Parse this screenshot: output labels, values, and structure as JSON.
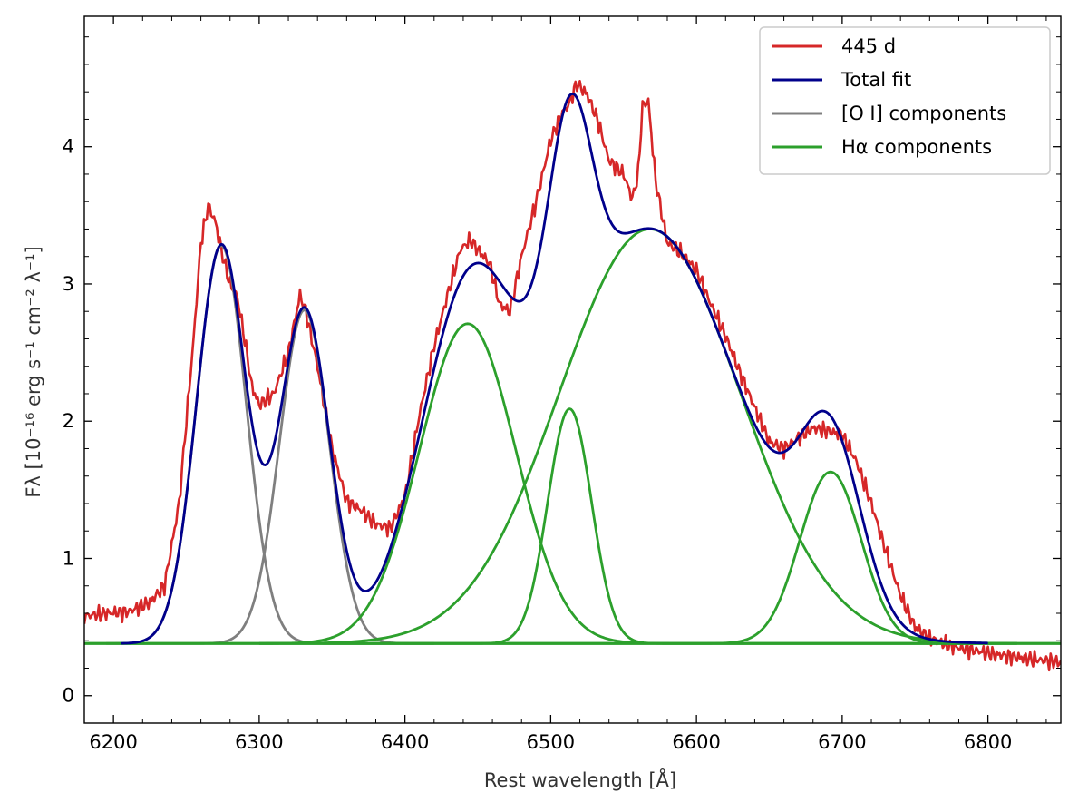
{
  "chart_data": {
    "type": "line",
    "title": "",
    "xlabel": "Rest wavelength [Å]",
    "ylabel": "Fλ [10⁻¹⁶ erg s⁻¹ cm⁻² λ⁻¹]",
    "xlim": [
      6180,
      6850
    ],
    "ylim": [
      -0.2,
      4.95
    ],
    "xticks": [
      6200,
      6300,
      6400,
      6500,
      6600,
      6700,
      6800
    ],
    "yticks": [
      0,
      1,
      2,
      3,
      4
    ],
    "legend_position": "top-right",
    "baseline": 0.38,
    "colors": {
      "observed": "#d62728",
      "total": "#00008b",
      "oi": "#7f7f7f",
      "halpha": "#2ca02c"
    },
    "legend": [
      {
        "label": "445 d",
        "color": "#d62728"
      },
      {
        "label": "Total fit",
        "color": "#00008b"
      },
      {
        "label": "[O I] components",
        "color": "#7f7f7f"
      },
      {
        "label": "Hα components",
        "color": "#2ca02c"
      }
    ],
    "oi_components": [
      {
        "center": 6274,
        "amplitude": 2.9,
        "sigma": 17
      },
      {
        "center": 6331,
        "amplitude": 2.43,
        "sigma": 17
      }
    ],
    "halpha_components": [
      {
        "center": 6443,
        "amplitude": 2.33,
        "sigma": 33
      },
      {
        "center": 6513,
        "amplitude": 1.71,
        "sigma": 15
      },
      {
        "center": 6568,
        "amplitude": 3.02,
        "sigma": 62
      },
      {
        "center": 6692,
        "amplitude": 1.25,
        "sigma": 21
      }
    ],
    "observed_series": {
      "name": "445 d",
      "x": [
        6180,
        6195,
        6210,
        6225,
        6235,
        6245,
        6255,
        6260,
        6265,
        6270,
        6275,
        6280,
        6285,
        6290,
        6295,
        6300,
        6310,
        6320,
        6328,
        6332,
        6340,
        6350,
        6360,
        6370,
        6380,
        6390,
        6400,
        6410,
        6420,
        6430,
        6438,
        6445,
        6450,
        6458,
        6465,
        6472,
        6480,
        6490,
        6500,
        6508,
        6512,
        6518,
        6525,
        6532,
        6540,
        6550,
        6556,
        6560,
        6563,
        6567,
        6572,
        6580,
        6590,
        6600,
        6610,
        6620,
        6630,
        6640,
        6650,
        6660,
        6670,
        6680,
        6690,
        6700,
        6710,
        6720,
        6730,
        6740,
        6750,
        6760,
        6775,
        6790,
        6805,
        6820,
        6835,
        6850
      ],
      "y": [
        0.58,
        0.6,
        0.61,
        0.68,
        0.8,
        1.4,
        2.6,
        3.3,
        3.57,
        3.45,
        3.2,
        3.0,
        2.9,
        2.6,
        2.25,
        2.12,
        2.2,
        2.5,
        2.92,
        2.8,
        2.4,
        1.8,
        1.42,
        1.35,
        1.25,
        1.22,
        1.45,
        2.05,
        2.55,
        2.95,
        3.25,
        3.32,
        3.25,
        3.15,
        2.85,
        2.8,
        3.2,
        3.6,
        4.05,
        4.25,
        4.3,
        4.46,
        4.38,
        4.2,
        3.9,
        3.8,
        3.62,
        3.8,
        4.3,
        4.33,
        3.75,
        3.3,
        3.22,
        3.1,
        2.85,
        2.62,
        2.35,
        2.1,
        1.85,
        1.8,
        1.88,
        1.95,
        1.93,
        1.9,
        1.7,
        1.4,
        1.05,
        0.73,
        0.5,
        0.42,
        0.36,
        0.33,
        0.3,
        0.28,
        0.26,
        0.24
      ]
    }
  }
}
